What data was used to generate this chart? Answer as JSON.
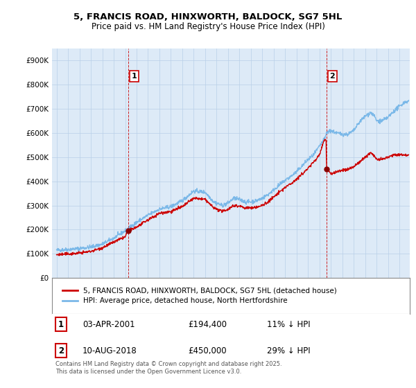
{
  "title": "5, FRANCIS ROAD, HINXWORTH, BALDOCK, SG7 5HL",
  "subtitle": "Price paid vs. HM Land Registry's House Price Index (HPI)",
  "legend_line1": "5, FRANCIS ROAD, HINXWORTH, BALDOCK, SG7 5HL (detached house)",
  "legend_line2": "HPI: Average price, detached house, North Hertfordshire",
  "footnote": "Contains HM Land Registry data © Crown copyright and database right 2025.\nThis data is licensed under the Open Government Licence v3.0.",
  "annotation1_label": "1",
  "annotation1_date": "03-APR-2001",
  "annotation1_price": 194400,
  "annotation1_text": "11% ↓ HPI",
  "annotation2_label": "2",
  "annotation2_date": "10-AUG-2018",
  "annotation2_price": 450000,
  "annotation2_text": "29% ↓ HPI",
  "hpi_color": "#7ab8e8",
  "price_color": "#cc0000",
  "annotation_box_color": "#cc0000",
  "chart_bg_color": "#ddeaf7",
  "background_color": "#ffffff",
  "grid_color": "#b8cfe8",
  "ylim": [
    0,
    950000
  ],
  "yticks": [
    0,
    100000,
    200000,
    300000,
    400000,
    500000,
    600000,
    700000,
    800000,
    900000
  ],
  "ytick_labels": [
    "£0",
    "£100K",
    "£200K",
    "£300K",
    "£400K",
    "£500K",
    "£600K",
    "£700K",
    "£800K",
    "£900K"
  ],
  "sale1_x": 2001.25,
  "sale1_y": 194400,
  "sale2_x": 2018.6,
  "sale2_y": 450000,
  "xmin": 1994.6,
  "xmax": 2025.9
}
